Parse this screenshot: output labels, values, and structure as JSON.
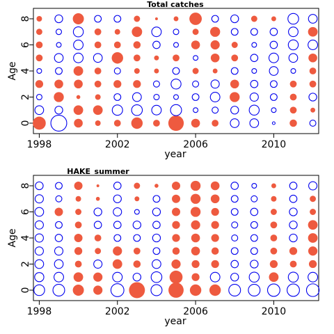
{
  "colors": {
    "positive": "#EE5A3F",
    "negative": "#0000EE",
    "frame": "#000000"
  },
  "chart_data": [
    {
      "type": "scatter",
      "subtype": "bubble-residuals",
      "title": "Total catches",
      "xlabel": "year",
      "ylabel": "Age",
      "xlim": [
        1997.7,
        2012.3
      ],
      "ylim": [
        -0.8,
        8.8
      ],
      "xticks": [
        "1998",
        "2002",
        "2006",
        "2010"
      ],
      "yticks": [
        "0",
        "2",
        "4",
        "6",
        "8"
      ],
      "years": [
        1998,
        1999,
        2000,
        2001,
        2002,
        2003,
        2004,
        2005,
        2006,
        2007,
        2008,
        2009,
        2010,
        2011,
        2012
      ],
      "ages": [
        0,
        1,
        2,
        3,
        4,
        5,
        6,
        7,
        8
      ],
      "residuals": {
        "1998": [
          2.2,
          -1.0,
          -0.4,
          0.8,
          -0.3,
          0.6,
          0.6,
          0.5,
          0.4
        ],
        "1999": [
          -3.3,
          -0.8,
          1.3,
          1.0,
          -0.6,
          -1.0,
          -0.3,
          -0.4,
          -0.8
        ],
        "2000": [
          1.0,
          1.2,
          0.2,
          1.0,
          1.2,
          -1.2,
          -1.2,
          -1.3,
          1.6
        ],
        "2001": [
          0.4,
          1.2,
          0.4,
          0.6,
          0.6,
          -1.0,
          0.6,
          0.6,
          -0.6
        ],
        "2002": [
          0.6,
          -1.4,
          -0.6,
          0.8,
          -0.5,
          1.7,
          0.6,
          0.4,
          -0.6
        ],
        "2003": [
          1.7,
          -1.5,
          -1.0,
          0.8,
          0.4,
          0.6,
          0.7,
          1.4,
          0.5
        ],
        "2004": [
          0.6,
          -1.2,
          -0.4,
          -0.5,
          0.3,
          0.3,
          -0.7,
          -1.2,
          0.1
        ],
        "2005": [
          3.1,
          -1.6,
          -0.3,
          -1.3,
          -0.6,
          0.6,
          -0.3,
          -0.4,
          0.3
        ],
        "2006": [
          1.0,
          -0.3,
          -0.6,
          -0.5,
          0.5,
          -0.3,
          1.0,
          0.5,
          2.0
        ],
        "2007": [
          0.6,
          -0.5,
          -1.2,
          -0.9,
          0.3,
          1.0,
          1.1,
          1.3,
          -0.6
        ],
        "2008": [
          -1.0,
          -0.8,
          1.3,
          1.0,
          -0.6,
          0.6,
          0.5,
          -0.6,
          -0.8
        ],
        "2009": [
          -1.0,
          -1.3,
          -0.9,
          -0.7,
          -0.3,
          -0.7,
          -0.3,
          -0.6,
          0.5
        ],
        "2010": [
          -0.1,
          -0.3,
          -0.6,
          -0.6,
          -1.0,
          -1.2,
          -0.7,
          -0.7,
          0.3
        ],
        "2011": [
          0.7,
          0.6,
          0.6,
          0.6,
          -0.3,
          -1.0,
          -1.3,
          -1.2,
          -1.5
        ],
        "2012": [
          -0.5,
          0.3,
          -0.8,
          0.6,
          0.6,
          1.0,
          -1.2,
          1.2,
          -1.0
        ]
      }
    },
    {
      "type": "scatter",
      "subtype": "bubble-residuals",
      "title": "HAKE_summer",
      "xlabel": "year",
      "ylabel": "Age",
      "xlim": [
        1997.7,
        2012.3
      ],
      "ylim": [
        -0.8,
        8.8
      ],
      "xticks": [
        "1998",
        "2002",
        "2006",
        "2010"
      ],
      "yticks": [
        "0",
        "2",
        "4",
        "6",
        "8"
      ],
      "years": [
        1998,
        1999,
        2000,
        2001,
        2002,
        2003,
        2004,
        2005,
        2006,
        2007,
        2008,
        2009,
        2010,
        2011,
        2012
      ],
      "ages": [
        0,
        1,
        2,
        3,
        4,
        5,
        6,
        7,
        8
      ],
      "residuals": {
        "1998": [
          -1.5,
          -1.1,
          -1.0,
          -0.9,
          -0.9,
          -0.9,
          -1.0,
          -0.9,
          -0.8
        ],
        "1999": [
          -1.8,
          -1.2,
          -1.0,
          -0.9,
          -0.7,
          -0.6,
          0.9,
          -0.5,
          -0.6
        ],
        "2000": [
          1.6,
          1.2,
          0.6,
          0.8,
          0.9,
          0.6,
          0.5,
          0.4,
          0.9
        ],
        "2001": [
          1.1,
          1.1,
          -0.9,
          0.5,
          0.6,
          -0.7,
          -0.8,
          0.2,
          0.1
        ],
        "2002": [
          -2.2,
          -1.2,
          1.2,
          1.1,
          -0.6,
          -0.7,
          -0.9,
          -0.8,
          -0.7
        ],
        "2003": [
          3.3,
          -0.8,
          0.7,
          0.6,
          -0.6,
          -0.8,
          -0.3,
          0.3,
          0.5
        ],
        "2004": [
          -1.6,
          -1.5,
          -1.0,
          -0.6,
          -0.8,
          -0.7,
          -0.8,
          -0.6,
          0.2
        ],
        "2005": [
          3.0,
          2.2,
          1.1,
          0.7,
          0.8,
          0.8,
          0.9,
          0.9,
          0.9
        ],
        "2006": [
          1.7,
          0.8,
          0.8,
          1.0,
          1.0,
          1.1,
          1.3,
          1.3,
          1.3
        ],
        "2007": [
          1.7,
          -1.2,
          0.8,
          0.7,
          0.8,
          0.8,
          0.8,
          1.0,
          1.0
        ],
        "2008": [
          -1.8,
          -0.8,
          -0.7,
          -0.6,
          -0.5,
          -0.5,
          -0.6,
          -0.6,
          -0.7
        ],
        "2009": [
          -1.8,
          -1.3,
          -0.8,
          -0.6,
          -0.6,
          -0.6,
          -0.7,
          -0.5,
          -0.3
        ],
        "2010": [
          -2.0,
          1.2,
          0.8,
          0.6,
          0.6,
          0.6,
          0.5,
          0.4,
          0.3
        ],
        "2011": [
          -2.0,
          -1.3,
          0.6,
          0.8,
          -0.8,
          -0.8,
          -0.8,
          -0.7,
          -0.7
        ],
        "2012": [
          -2.1,
          -1.2,
          0.8,
          1.1,
          1.2,
          1.2,
          0.5,
          0.5,
          -0.9
        ]
      }
    }
  ]
}
